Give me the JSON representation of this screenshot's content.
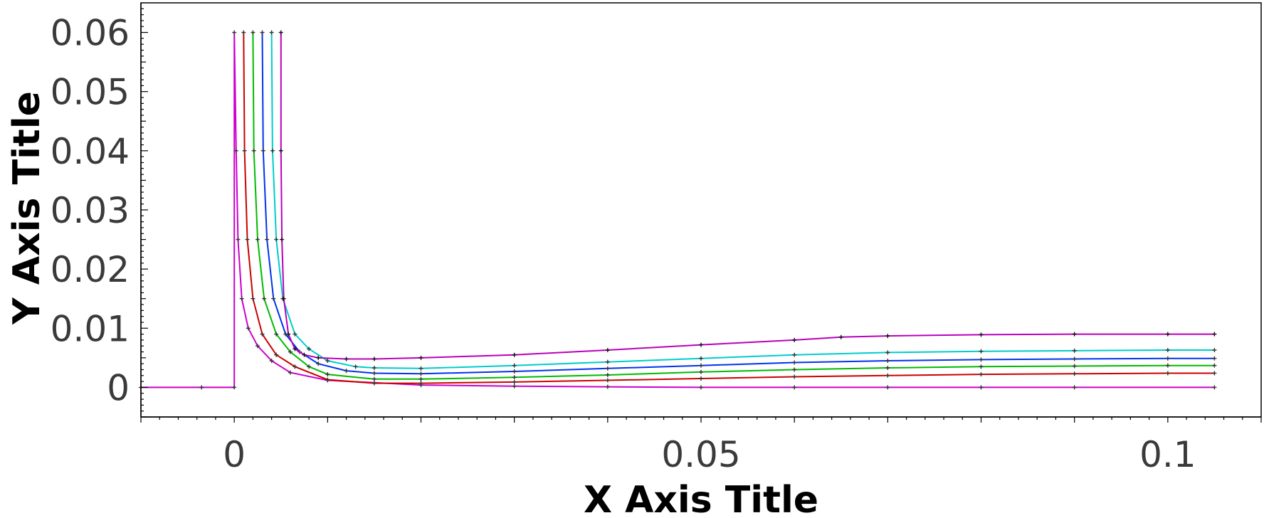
{
  "chart_data": {
    "type": "line",
    "xlabel": "X Axis Title",
    "ylabel": "Y Axis Title",
    "xlim": [
      -0.01,
      0.11
    ],
    "ylim": [
      -0.005,
      0.065
    ],
    "x_ticks": [
      {
        "value": 0,
        "label": "0"
      },
      {
        "value": 0.05,
        "label": "0.05"
      },
      {
        "value": 0.1,
        "label": "0.1"
      }
    ],
    "y_ticks": [
      {
        "value": 0,
        "label": "0"
      },
      {
        "value": 0.01,
        "label": "0.01"
      },
      {
        "value": 0.02,
        "label": "0.02"
      },
      {
        "value": 0.03,
        "label": "0.03"
      },
      {
        "value": 0.04,
        "label": "0.04"
      },
      {
        "value": 0.05,
        "label": "0.05"
      },
      {
        "value": 0.06,
        "label": "0.06"
      }
    ],
    "grid": false,
    "legend": "none",
    "series": [
      {
        "color": "#cc00cc",
        "marker_color": "#333333",
        "x": [
          -0.01,
          -0.0035,
          0,
          0,
          0.0002,
          0.0004,
          0.0008,
          0.0015,
          0.0025,
          0.004,
          0.006,
          0.01,
          0.02,
          0.03,
          0.04,
          0.05,
          0.06,
          0.07,
          0.08,
          0.09,
          0.105
        ],
        "y": [
          0,
          0,
          0,
          0.06,
          0.04,
          0.025,
          0.015,
          0.01,
          0.007,
          0.0045,
          0.0025,
          0.0012,
          0.0004,
          0.0002,
          0.0001,
          0,
          0,
          0,
          0,
          0,
          0
        ]
      },
      {
        "color": "#cc0000",
        "marker_color": "#333333",
        "x": [
          0.001,
          0.0011,
          0.0014,
          0.002,
          0.003,
          0.0045,
          0.0065,
          0.01,
          0.015,
          0.02,
          0.03,
          0.04,
          0.05,
          0.06,
          0.07,
          0.08,
          0.09,
          0.1,
          0.105
        ],
        "y": [
          0.06,
          0.04,
          0.025,
          0.015,
          0.009,
          0.0055,
          0.0035,
          0.0013,
          0.0007,
          0.0007,
          0.0009,
          0.0012,
          0.0015,
          0.0018,
          0.002,
          0.0022,
          0.0023,
          0.0024,
          0.0024
        ]
      },
      {
        "color": "#00bb00",
        "marker_color": "#333333",
        "x": [
          0.002,
          0.0021,
          0.0025,
          0.0032,
          0.0045,
          0.006,
          0.008,
          0.01,
          0.015,
          0.02,
          0.03,
          0.04,
          0.05,
          0.06,
          0.07,
          0.08,
          0.09,
          0.1,
          0.105
        ],
        "y": [
          0.06,
          0.04,
          0.025,
          0.015,
          0.009,
          0.006,
          0.0035,
          0.0022,
          0.0014,
          0.0014,
          0.0017,
          0.0021,
          0.0026,
          0.003,
          0.0033,
          0.0035,
          0.0036,
          0.0037,
          0.0037
        ]
      },
      {
        "color": "#0033ee",
        "marker_color": "#333333",
        "x": [
          0.003,
          0.0031,
          0.0035,
          0.0042,
          0.0055,
          0.007,
          0.009,
          0.012,
          0.015,
          0.02,
          0.03,
          0.04,
          0.05,
          0.06,
          0.07,
          0.08,
          0.09,
          0.1,
          0.105
        ],
        "y": [
          0.06,
          0.04,
          0.025,
          0.015,
          0.009,
          0.006,
          0.004,
          0.0028,
          0.0024,
          0.0023,
          0.0027,
          0.0032,
          0.0037,
          0.0042,
          0.0045,
          0.0047,
          0.0048,
          0.0049,
          0.0049
        ]
      },
      {
        "color": "#00cccc",
        "marker_color": "#333333",
        "x": [
          0.004,
          0.0041,
          0.0045,
          0.0052,
          0.0065,
          0.008,
          0.01,
          0.013,
          0.015,
          0.02,
          0.03,
          0.04,
          0.05,
          0.06,
          0.07,
          0.08,
          0.09,
          0.1,
          0.105
        ],
        "y": [
          0.06,
          0.04,
          0.025,
          0.015,
          0.009,
          0.0065,
          0.0045,
          0.0035,
          0.0033,
          0.0032,
          0.0037,
          0.0043,
          0.0049,
          0.0055,
          0.0059,
          0.0061,
          0.0062,
          0.0063,
          0.0063
        ]
      },
      {
        "color": "#bb00bb",
        "marker_color": "#111111",
        "x": [
          0.005,
          0.005,
          0.0051,
          0.0053,
          0.0058,
          0.0065,
          0.0075,
          0.009,
          0.012,
          0.015,
          0.02,
          0.03,
          0.04,
          0.05,
          0.06,
          0.065,
          0.07,
          0.08,
          0.09,
          0.1,
          0.105
        ],
        "y": [
          0.06,
          0.04,
          0.025,
          0.015,
          0.009,
          0.0065,
          0.0055,
          0.005,
          0.0048,
          0.0048,
          0.005,
          0.0055,
          0.0063,
          0.0072,
          0.008,
          0.0085,
          0.0087,
          0.0089,
          0.009,
          0.009,
          0.009
        ]
      }
    ]
  }
}
